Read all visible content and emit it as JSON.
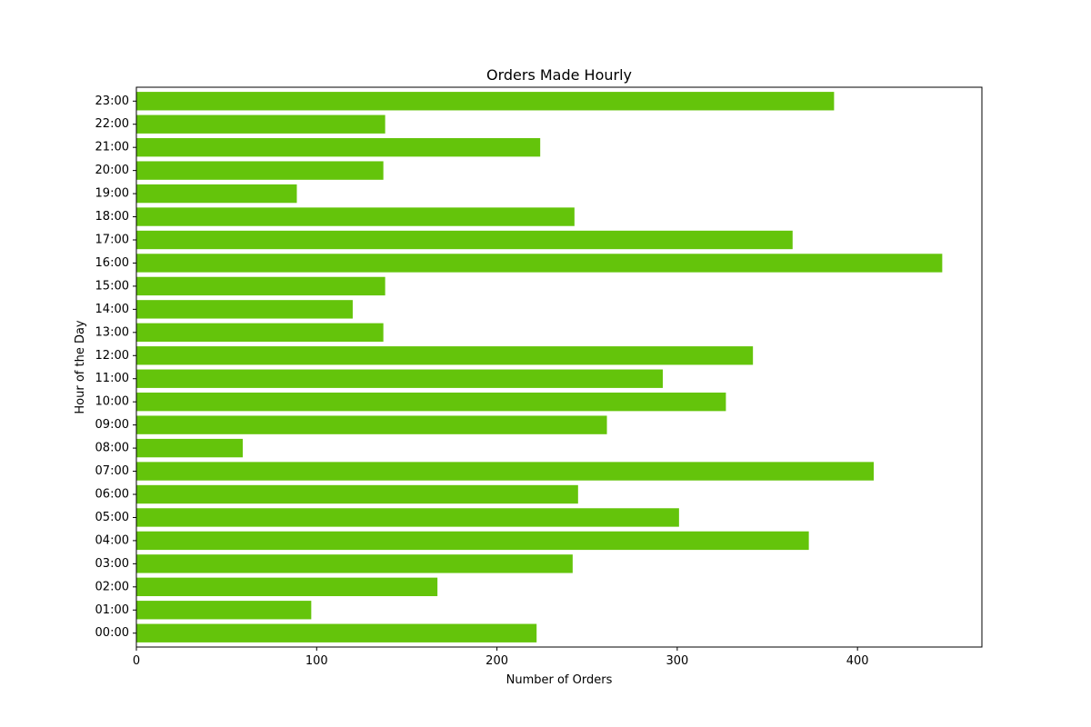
{
  "chart_data": {
    "type": "bar",
    "orientation": "horizontal",
    "title": "Orders Made Hourly",
    "xlabel": "Number of Orders",
    "ylabel": "Hour of the Day",
    "xlim": [
      0,
      469
    ],
    "xticks": [
      0,
      100,
      200,
      300,
      400
    ],
    "grid": false,
    "bar_color": "#64c40b",
    "categories": [
      "00:00",
      "01:00",
      "02:00",
      "03:00",
      "04:00",
      "05:00",
      "06:00",
      "07:00",
      "08:00",
      "09:00",
      "10:00",
      "11:00",
      "12:00",
      "13:00",
      "14:00",
      "15:00",
      "16:00",
      "17:00",
      "18:00",
      "19:00",
      "20:00",
      "21:00",
      "22:00",
      "23:00"
    ],
    "values": [
      222,
      97,
      167,
      242,
      373,
      301,
      245,
      409,
      59,
      261,
      327,
      292,
      342,
      137,
      120,
      138,
      447,
      364,
      243,
      89,
      137,
      224,
      138,
      387
    ]
  }
}
